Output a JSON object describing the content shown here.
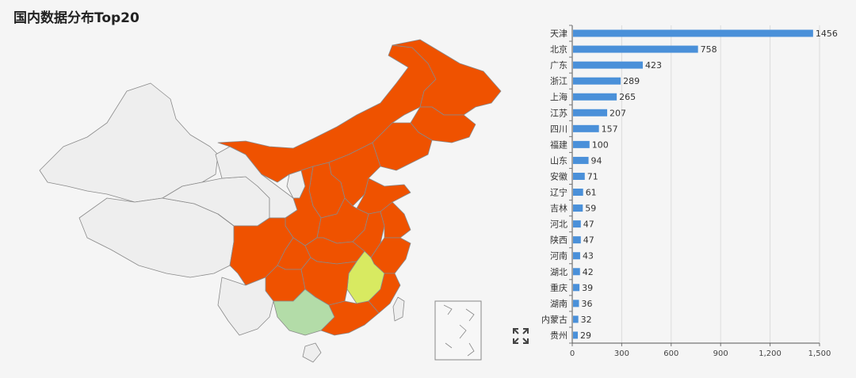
{
  "title": "国内数据分布Top20",
  "map": {
    "colors": {
      "high": "#ef5200",
      "mid": "#d8ea61",
      "low": "#b3dca8",
      "none": "#eeeeee",
      "border": "#888888"
    }
  },
  "icons": {
    "fullscreen": "fullscreen-icon"
  },
  "chart_data": {
    "type": "bar",
    "orientation": "horizontal",
    "categories": [
      "天津",
      "北京",
      "广东",
      "浙江",
      "上海",
      "江苏",
      "四川",
      "福建",
      "山东",
      "安徽",
      "辽宁",
      "吉林",
      "河北",
      "陕西",
      "河南",
      "湖北",
      "重庆",
      "湖南",
      "内蒙古",
      "贵州"
    ],
    "values": [
      1456,
      758,
      423,
      289,
      265,
      207,
      157,
      100,
      94,
      71,
      61,
      59,
      47,
      47,
      43,
      42,
      39,
      36,
      32,
      29
    ],
    "xlim": [
      0,
      1500
    ],
    "xticks": [
      0,
      300,
      600,
      900,
      1200,
      1500
    ],
    "xtick_labels": [
      "0",
      "300",
      "600",
      "900",
      "1,200",
      "1,500"
    ],
    "grid": true,
    "bar_color": "#4a90d9"
  }
}
